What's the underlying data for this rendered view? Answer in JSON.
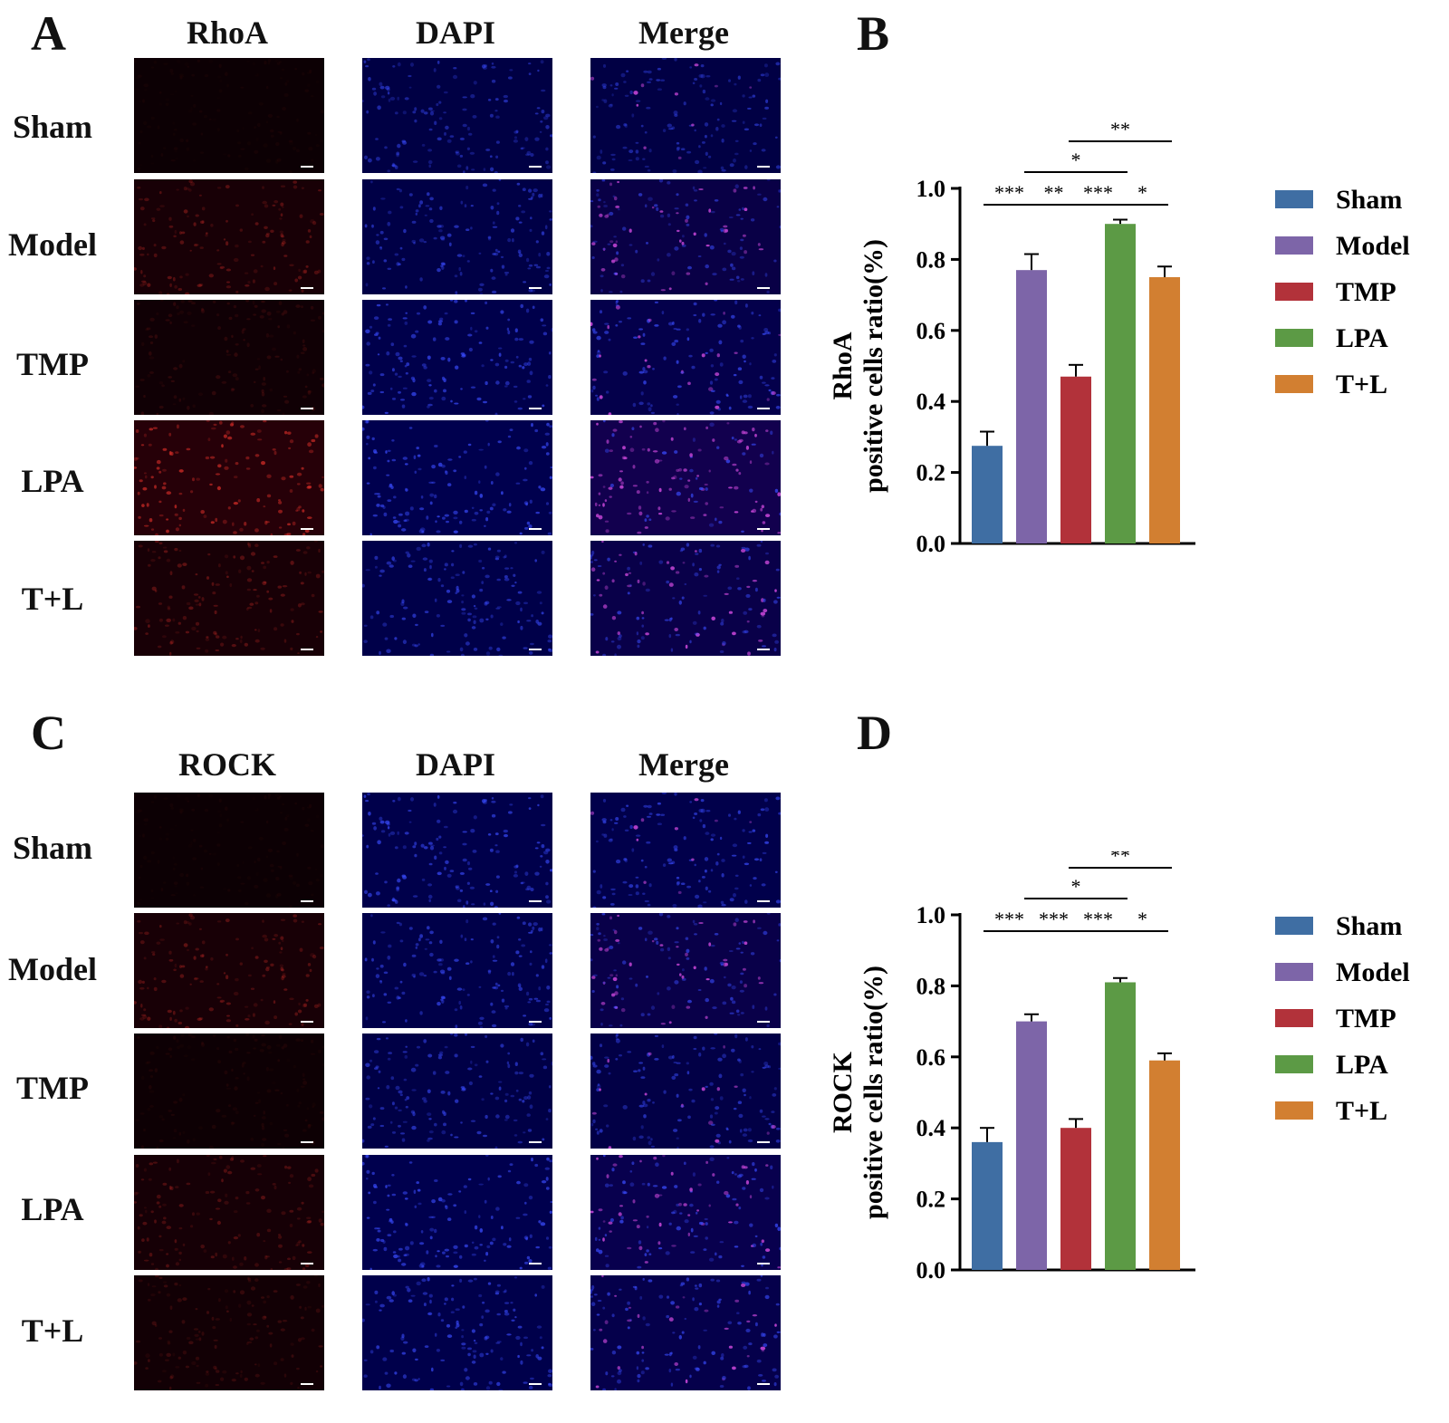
{
  "panels": {
    "A": "A",
    "B": "B",
    "C": "C",
    "D": "D"
  },
  "rows": [
    "Sham",
    "Model",
    "TMP",
    "LPA",
    "T+L"
  ],
  "top_grid": {
    "columns": [
      "RhoA",
      "DAPI",
      "Merge"
    ],
    "red_intensity": [
      0.05,
      0.35,
      0.15,
      0.7,
      0.35
    ],
    "blue_intensity": [
      0.55,
      0.6,
      0.7,
      0.75,
      0.65
    ]
  },
  "bottom_grid": {
    "columns": [
      "ROCK",
      "DAPI",
      "Merge"
    ],
    "red_intensity": [
      0.05,
      0.35,
      0.08,
      0.3,
      0.2
    ],
    "blue_intensity": [
      0.7,
      0.65,
      0.6,
      0.75,
      0.7
    ]
  },
  "colors": {
    "Sham": "#3f6ea3",
    "Model": "#7d65a8",
    "TMP": "#b2323a",
    "LPA": "#5c9a45",
    "T+L": "#d27f31"
  },
  "chart_data": [
    {
      "type": "bar",
      "categories": [
        "Sham",
        "Model",
        "TMP",
        "LPA",
        "T+L"
      ],
      "values": [
        0.275,
        0.77,
        0.47,
        0.9,
        0.75
      ],
      "errors": [
        0.04,
        0.045,
        0.033,
        0.012,
        0.03
      ],
      "ylabel_line1": "RhoA",
      "ylabel_line2": "positive cells ratio(%)",
      "ylim": [
        0,
        1.0
      ],
      "yticks": [
        "0.0",
        "0.2",
        "0.4",
        "0.6",
        "0.8",
        "1.0"
      ],
      "legend": [
        "Sham",
        "Model",
        "TMP",
        "LPA",
        "T+L"
      ],
      "legend_position": "right",
      "significance": [
        {
          "from": 0,
          "to": 1,
          "label": "***",
          "tier": 0
        },
        {
          "from": 1,
          "to": 2,
          "label": "**",
          "tier": 0
        },
        {
          "from": 2,
          "to": 3,
          "label": "***",
          "tier": 0
        },
        {
          "from": 3,
          "to": 4,
          "label": "*",
          "tier": 0
        },
        {
          "from": 1,
          "to": 3,
          "label": "*",
          "tier": 1
        },
        {
          "from": 2,
          "to": 4,
          "label": "**",
          "tier": 2
        }
      ]
    },
    {
      "type": "bar",
      "categories": [
        "Sham",
        "Model",
        "TMP",
        "LPA",
        "T+L"
      ],
      "values": [
        0.36,
        0.7,
        0.4,
        0.81,
        0.59
      ],
      "errors": [
        0.04,
        0.02,
        0.025,
        0.012,
        0.02
      ],
      "ylabel_line1": "ROCK",
      "ylabel_line2": "positive cells ratio(%)",
      "ylim": [
        0,
        1.0
      ],
      "yticks": [
        "0.0",
        "0.2",
        "0.4",
        "0.6",
        "0.8",
        "1.0"
      ],
      "legend": [
        "Sham",
        "Model",
        "TMP",
        "LPA",
        "T+L"
      ],
      "legend_position": "right",
      "significance": [
        {
          "from": 0,
          "to": 1,
          "label": "***",
          "tier": 0
        },
        {
          "from": 1,
          "to": 2,
          "label": "***",
          "tier": 0
        },
        {
          "from": 2,
          "to": 3,
          "label": "***",
          "tier": 0
        },
        {
          "from": 3,
          "to": 4,
          "label": "*",
          "tier": 0
        },
        {
          "from": 1,
          "to": 3,
          "label": "*",
          "tier": 1
        },
        {
          "from": 2,
          "to": 4,
          "label": "**",
          "tier": 2
        }
      ]
    }
  ]
}
